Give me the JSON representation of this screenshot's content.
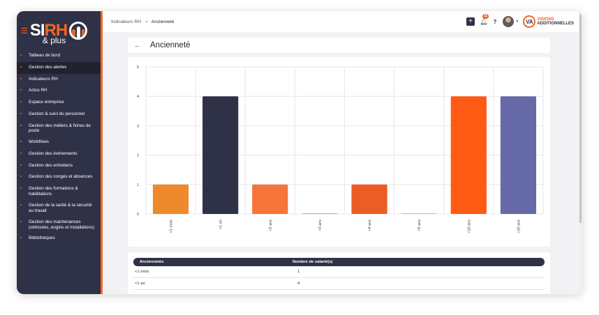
{
  "logo": {
    "word_white": "SI",
    "word_orange": "RH",
    "sub": "& plus"
  },
  "sidebar": {
    "items": [
      {
        "label": "Tableau de bord",
        "icon": "grid-icon"
      },
      {
        "label": "Gestion des alertes",
        "icon": "bell-icon",
        "active": true
      },
      {
        "label": "Indicateurs RH",
        "icon": "chart-line-icon"
      },
      {
        "label": "Actus RH",
        "icon": "book-icon"
      },
      {
        "label": "Espace entreprise",
        "icon": "building-icon"
      },
      {
        "label": "Gestion & suivi du personnel",
        "icon": "users-icon"
      },
      {
        "label": "Gestion des métiers & fiches de poste",
        "icon": "briefcase-icon"
      },
      {
        "label": "Workflows",
        "icon": "workflow-icon"
      },
      {
        "label": "Gestion des évènements",
        "icon": "calendar-icon"
      },
      {
        "label": "Gestion des entretiens",
        "icon": "clipboard-icon"
      },
      {
        "label": "Gestion des congés et absences",
        "icon": "calendar-off-icon"
      },
      {
        "label": "Gestion des formations & habilitations",
        "icon": "graduation-icon"
      },
      {
        "label": "Gestion de la santé & la sécurité au travail",
        "icon": "health-icon"
      },
      {
        "label": "Gestion des maintenances (véhicules, engins et installations)",
        "icon": "tools-icon"
      },
      {
        "label": "Bibliothèques",
        "icon": "folder-icon"
      }
    ]
  },
  "breadcrumb": {
    "parent": "Indicateurs RH",
    "separator": ">",
    "current": "Ancienneté"
  },
  "header": {
    "notification_count": "11",
    "help": "?",
    "company_line1": "VISIONS",
    "company_line2": "ADDITIONNELLES"
  },
  "page": {
    "title": "Ancienneté"
  },
  "chart_data": {
    "type": "bar",
    "categories": [
      "<1 mois",
      "<1 an",
      "<2 ans",
      "<3 ans",
      "<4 ans",
      "<5 ans",
      "<10 ans",
      ">10 ans"
    ],
    "values": [
      1,
      4,
      1,
      0,
      1,
      0,
      4,
      4
    ],
    "colors": [
      "#ee8a2c",
      "#2f3147",
      "#f6733a",
      "#f4a07a",
      "#ec5d26",
      "#f2b48c",
      "#ff5a14",
      "#666aa8"
    ],
    "yticks": [
      "0",
      "1",
      "2",
      "3",
      "4",
      "5"
    ],
    "ylim": [
      0,
      5
    ],
    "grid": true
  },
  "table": {
    "headers": [
      "Anciennetés",
      "Nombre de salarié(s)"
    ],
    "rows": [
      [
        "<1 mois",
        "1"
      ],
      [
        "<1 an",
        "4"
      ]
    ]
  }
}
